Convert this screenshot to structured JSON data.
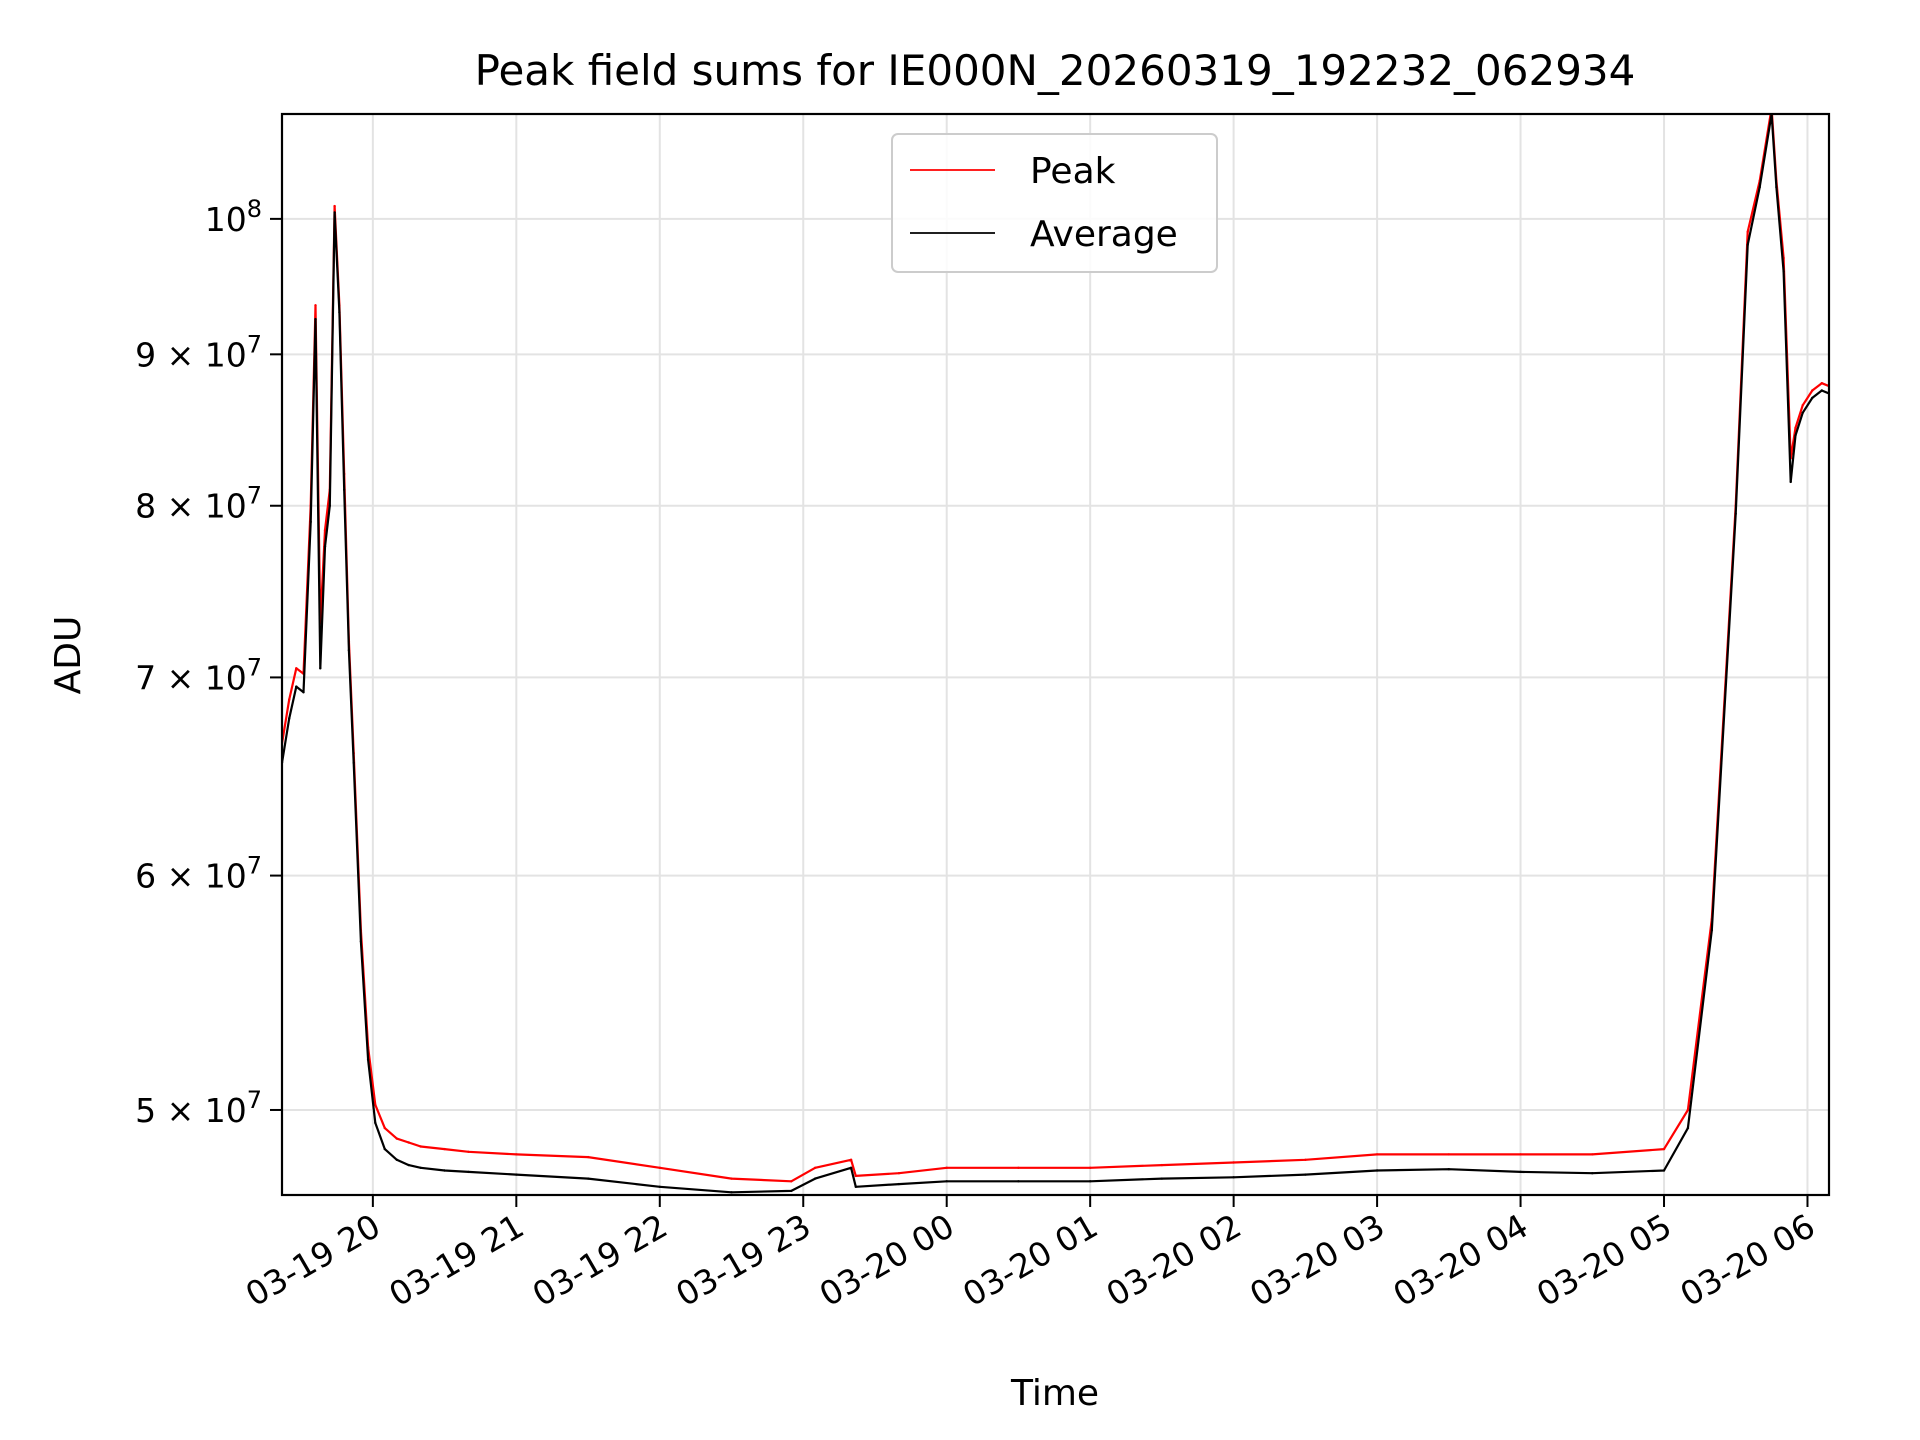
{
  "chart_data": {
    "type": "line",
    "title": "Peak field sums for IE000N_20260319_192232_062934",
    "xlabel": "Time",
    "ylabel": "ADU",
    "y_scale": "log",
    "ylim": [
      46800000,
      108500000
    ],
    "xlim": [
      "2026-03-19 19:22",
      "2026-03-20 06:09"
    ],
    "grid": true,
    "legend": "upper center",
    "x_ticks": [
      {
        "t": "2026-03-19 20:00",
        "label": "03-19 20"
      },
      {
        "t": "2026-03-19 21:00",
        "label": "03-19 21"
      },
      {
        "t": "2026-03-19 22:00",
        "label": "03-19 22"
      },
      {
        "t": "2026-03-19 23:00",
        "label": "03-19 23"
      },
      {
        "t": "2026-03-20 00:00",
        "label": "03-20 00"
      },
      {
        "t": "2026-03-20 01:00",
        "label": "03-20 01"
      },
      {
        "t": "2026-03-20 02:00",
        "label": "03-20 02"
      },
      {
        "t": "2026-03-20 03:00",
        "label": "03-20 03"
      },
      {
        "t": "2026-03-20 04:00",
        "label": "03-20 04"
      },
      {
        "t": "2026-03-20 05:00",
        "label": "03-20 05"
      },
      {
        "t": "2026-03-20 06:00",
        "label": "03-20 06"
      }
    ],
    "y_ticks": [
      {
        "value": 50000000,
        "mant": "5",
        "exp": "7"
      },
      {
        "value": 60000000,
        "mant": "6",
        "exp": "7"
      },
      {
        "value": 70000000,
        "mant": "7",
        "exp": "7"
      },
      {
        "value": 80000000,
        "mant": "8",
        "exp": "7"
      },
      {
        "value": 90000000,
        "mant": "9",
        "exp": "7"
      },
      {
        "value": 100000000,
        "mant": "",
        "exp": "8"
      }
    ],
    "series": [
      {
        "name": "Peak",
        "color": "#ff0000",
        "x": [
          "2026-03-19 19:22",
          "2026-03-19 19:25",
          "2026-03-19 19:28",
          "2026-03-19 19:31",
          "2026-03-19 19:34",
          "2026-03-19 19:36",
          "2026-03-19 19:38",
          "2026-03-19 19:40",
          "2026-03-19 19:42",
          "2026-03-19 19:44",
          "2026-03-19 19:46",
          "2026-03-19 19:48",
          "2026-03-19 19:50",
          "2026-03-19 19:52",
          "2026-03-19 19:55",
          "2026-03-19 19:58",
          "2026-03-19 20:01",
          "2026-03-19 20:05",
          "2026-03-19 20:10",
          "2026-03-19 20:15",
          "2026-03-19 20:20",
          "2026-03-19 20:30",
          "2026-03-19 20:40",
          "2026-03-19 21:00",
          "2026-03-19 21:30",
          "2026-03-19 22:00",
          "2026-03-19 22:30",
          "2026-03-19 22:55",
          "2026-03-19 23:05",
          "2026-03-19 23:20",
          "2026-03-19 23:22",
          "2026-03-19 23:40",
          "2026-03-20 00:00",
          "2026-03-20 00:30",
          "2026-03-20 01:00",
          "2026-03-20 01:30",
          "2026-03-20 02:00",
          "2026-03-20 02:30",
          "2026-03-20 03:00",
          "2026-03-20 03:30",
          "2026-03-20 04:00",
          "2026-03-20 04:30",
          "2026-03-20 05:00",
          "2026-03-20 05:10",
          "2026-03-20 05:20",
          "2026-03-20 05:30",
          "2026-03-20 05:35",
          "2026-03-20 05:40",
          "2026-03-20 05:45",
          "2026-03-20 05:47",
          "2026-03-20 05:50",
          "2026-03-20 05:53",
          "2026-03-20 05:55",
          "2026-03-20 05:58",
          "2026-03-20 06:02",
          "2026-03-20 06:06",
          "2026-03-20 06:09"
        ],
        "values": [
          66500000,
          68800000,
          70500000,
          70200000,
          80000000,
          93500000,
          73000000,
          78500000,
          81000000,
          101000000,
          93500000,
          82000000,
          72000000,
          66000000,
          57500000,
          52500000,
          50200000,
          49300000,
          48900000,
          48750000,
          48600000,
          48500000,
          48400000,
          48300000,
          48200000,
          47800000,
          47400000,
          47300000,
          47800000,
          48100000,
          47500000,
          47600000,
          47800000,
          47800000,
          47800000,
          47900000,
          48000000,
          48100000,
          48300000,
          48300000,
          48300000,
          48300000,
          48500000,
          50000000,
          58000000,
          80000000,
          99000000,
          103000000,
          109000000,
          103000000,
          97000000,
          83000000,
          85000000,
          86500000,
          87500000,
          88000000,
          87800000
        ]
      },
      {
        "name": "Average",
        "color": "#000000",
        "x": [
          "2026-03-19 19:22",
          "2026-03-19 19:25",
          "2026-03-19 19:28",
          "2026-03-19 19:31",
          "2026-03-19 19:34",
          "2026-03-19 19:36",
          "2026-03-19 19:38",
          "2026-03-19 19:40",
          "2026-03-19 19:42",
          "2026-03-19 19:44",
          "2026-03-19 19:46",
          "2026-03-19 19:48",
          "2026-03-19 19:50",
          "2026-03-19 19:52",
          "2026-03-19 19:55",
          "2026-03-19 19:58",
          "2026-03-19 20:01",
          "2026-03-19 20:05",
          "2026-03-19 20:10",
          "2026-03-19 20:15",
          "2026-03-19 20:20",
          "2026-03-19 20:30",
          "2026-03-19 20:40",
          "2026-03-19 21:00",
          "2026-03-19 21:30",
          "2026-03-19 22:00",
          "2026-03-19 22:30",
          "2026-03-19 22:55",
          "2026-03-19 23:05",
          "2026-03-19 23:20",
          "2026-03-19 23:22",
          "2026-03-19 23:40",
          "2026-03-20 00:00",
          "2026-03-20 00:30",
          "2026-03-20 01:00",
          "2026-03-20 01:30",
          "2026-03-20 02:00",
          "2026-03-20 02:30",
          "2026-03-20 03:00",
          "2026-03-20 03:30",
          "2026-03-20 04:00",
          "2026-03-20 04:30",
          "2026-03-20 05:00",
          "2026-03-20 05:10",
          "2026-03-20 05:20",
          "2026-03-20 05:30",
          "2026-03-20 05:35",
          "2026-03-20 05:40",
          "2026-03-20 05:45",
          "2026-03-20 05:47",
          "2026-03-20 05:50",
          "2026-03-20 05:53",
          "2026-03-20 05:55",
          "2026-03-20 05:58",
          "2026-03-20 06:02",
          "2026-03-20 06:06",
          "2026-03-20 06:09"
        ],
        "values": [
          65500000,
          67800000,
          69500000,
          69200000,
          79000000,
          92500000,
          70500000,
          77500000,
          80000000,
          100500000,
          93000000,
          81000000,
          71500000,
          65500000,
          57000000,
          52000000,
          49500000,
          48500000,
          48100000,
          47900000,
          47800000,
          47700000,
          47650000,
          47550000,
          47400000,
          47100000,
          46900000,
          46950000,
          47400000,
          47800000,
          47100000,
          47200000,
          47300000,
          47300000,
          47300000,
          47400000,
          47450000,
          47550000,
          47700000,
          47750000,
          47650000,
          47600000,
          47700000,
          49300000,
          57500000,
          79500000,
          98000000,
          102500000,
          108500000,
          102500000,
          96000000,
          81500000,
          84500000,
          86000000,
          87000000,
          87500000,
          87300000
        ]
      }
    ]
  }
}
